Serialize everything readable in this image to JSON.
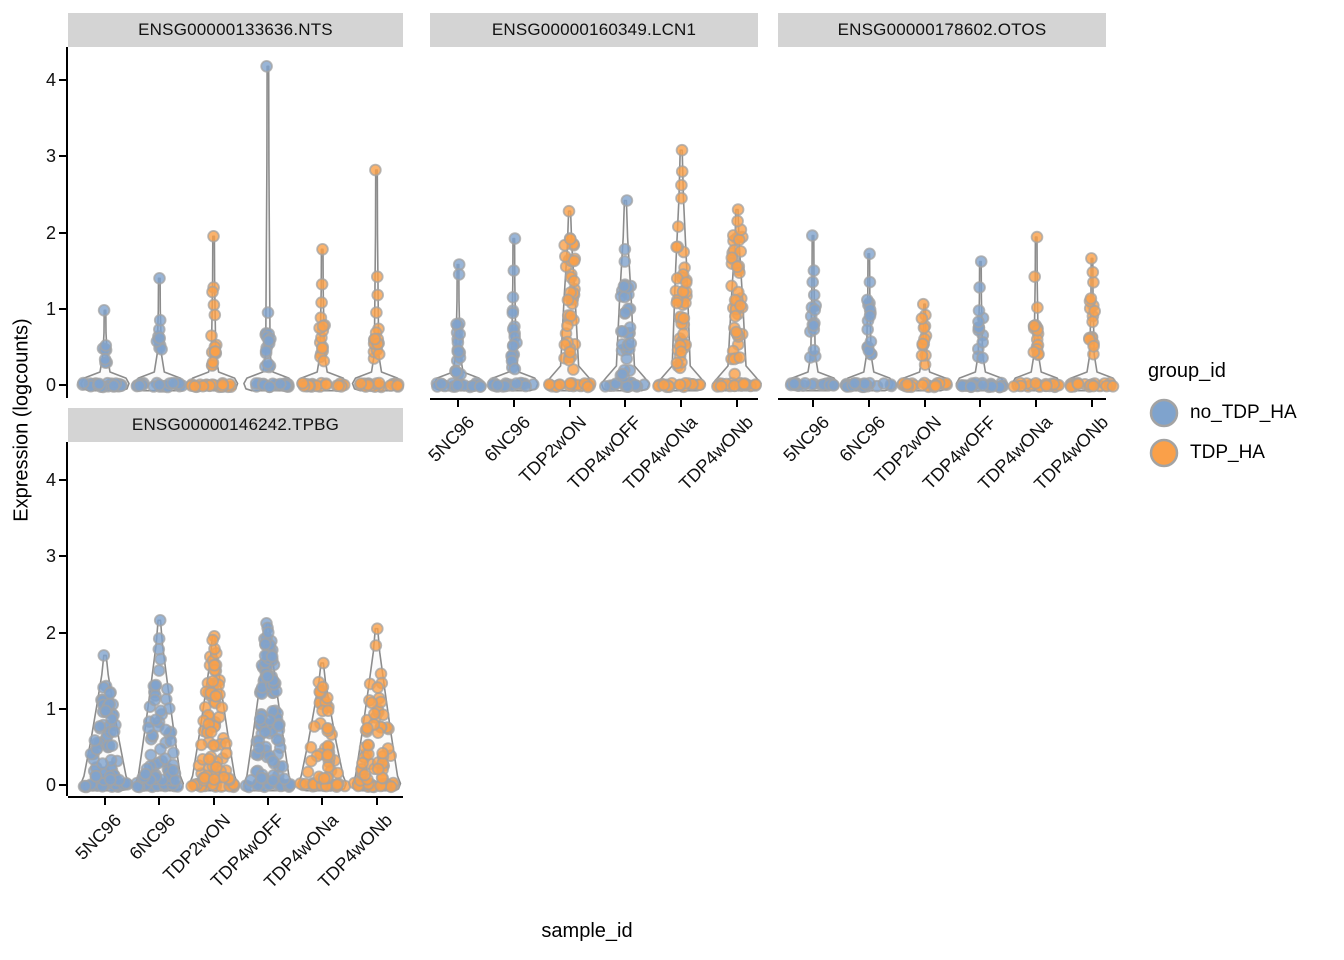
{
  "figure": {
    "y_axis_title": "Expression (logcounts)",
    "x_axis_title": "sample_id",
    "y_ticks": [
      0,
      1,
      2,
      3,
      4
    ],
    "x_categories": [
      "5NC96",
      "6NC96",
      "TDP2wON",
      "TDP4wOFF",
      "TDP4wONa",
      "TDP4wONb"
    ],
    "legend": {
      "title": "group_id",
      "items": [
        {
          "label": "no_TDP_HA",
          "color": "#7FA3CD"
        },
        {
          "label": "TDP_HA",
          "color": "#FAA049"
        }
      ]
    }
  },
  "colors": {
    "no_TDP_HA": "#7FA3CD",
    "TDP_HA": "#FAA049",
    "point_stroke": "#A3A3A3",
    "violin_stroke": "#8C8C8C",
    "violin_fill": "#FBFBFB",
    "strip_bg": "#D4D4D4",
    "axis": "#000000"
  },
  "chart_data": [
    {
      "type": "violin",
      "title": "ENSG00000133636.NTS",
      "xlabel": "sample_id",
      "ylabel": "Expression (logcounts)",
      "ylim": [
        0,
        4.2
      ],
      "samples": [
        {
          "sample": "5NC96",
          "group": "no_TDP_HA",
          "shape": "pin",
          "max": 0.98,
          "upper": [
            0.98,
            0.52
          ],
          "column": {
            "min": 0.28,
            "max": 0.5,
            "n": 6
          },
          "zeros": 22
        },
        {
          "sample": "6NC96",
          "group": "no_TDP_HA",
          "shape": "pin",
          "max": 1.4,
          "upper": [
            1.4,
            0.85
          ],
          "column": {
            "min": 0.38,
            "max": 0.8,
            "n": 8
          },
          "zeros": 22
        },
        {
          "sample": "TDP2wON",
          "group": "TDP_HA",
          "shape": "pin",
          "max": 1.95,
          "upper": [
            1.95,
            1.28,
            1.22,
            1.05,
            0.92
          ],
          "column": {
            "min": 0.25,
            "max": 0.65,
            "n": 11
          },
          "zeros": 22
        },
        {
          "sample": "TDP4wOFF",
          "group": "no_TDP_HA",
          "shape": "pin",
          "max": 4.18,
          "upper": [
            4.18,
            0.95
          ],
          "column": {
            "min": 0.22,
            "max": 0.68,
            "n": 14
          },
          "zeros": 22
        },
        {
          "sample": "TDP4wONa",
          "group": "TDP_HA",
          "shape": "pin",
          "max": 1.78,
          "upper": [
            1.78,
            1.32,
            1.08
          ],
          "column": {
            "min": 0.3,
            "max": 0.95,
            "n": 13
          },
          "zeros": 22
        },
        {
          "sample": "TDP4wONb",
          "group": "TDP_HA",
          "shape": "pin",
          "max": 2.82,
          "upper": [
            2.82,
            1.42,
            1.18,
            0.95
          ],
          "column": {
            "min": 0.25,
            "max": 0.75,
            "n": 13
          },
          "zeros": 22
        }
      ]
    },
    {
      "type": "violin",
      "title": "ENSG00000160349.LCN1",
      "xlabel": "sample_id",
      "ylabel": "Expression (logcounts)",
      "ylim": [
        0,
        4.2
      ],
      "samples": [
        {
          "sample": "5NC96",
          "group": "no_TDP_HA",
          "shape": "pin",
          "max": 1.58,
          "upper": [
            1.58,
            1.45
          ],
          "column": {
            "min": 0.12,
            "max": 0.9,
            "n": 18
          },
          "zeros": 20
        },
        {
          "sample": "6NC96",
          "group": "no_TDP_HA",
          "shape": "pin",
          "max": 1.92,
          "upper": [
            1.92,
            1.5,
            1.15
          ],
          "column": {
            "min": 0.12,
            "max": 0.98,
            "n": 16
          },
          "zeros": 20
        },
        {
          "sample": "TDP2wON",
          "group": "TDP_HA",
          "shape": "funnel",
          "max": 2.28,
          "upper": [
            2.28
          ],
          "column": {
            "min": 0.1,
            "max": 2.0,
            "n": 38
          },
          "zeros": 20
        },
        {
          "sample": "TDP4wOFF",
          "group": "no_TDP_HA",
          "shape": "funnel",
          "max": 2.42,
          "upper": [
            2.42,
            1.78,
            1.62
          ],
          "column": {
            "min": 0.1,
            "max": 1.35,
            "n": 30
          },
          "zeros": 20
        },
        {
          "sample": "TDP4wONa",
          "group": "TDP_HA",
          "shape": "funnel",
          "max": 3.08,
          "upper": [
            3.08,
            2.8,
            2.62,
            2.45
          ],
          "column": {
            "min": 0.1,
            "max": 2.1,
            "n": 40
          },
          "zeros": 20
        },
        {
          "sample": "TDP4wONb",
          "group": "TDP_HA",
          "shape": "funnel",
          "max": 2.3,
          "upper": [
            2.3,
            2.15
          ],
          "column": {
            "min": 0.1,
            "max": 2.05,
            "n": 40
          },
          "zeros": 20
        }
      ]
    },
    {
      "type": "violin",
      "title": "ENSG00000178602.OTOS",
      "xlabel": "sample_id",
      "ylabel": "Expression (logcounts)",
      "ylim": [
        0,
        4.2
      ],
      "samples": [
        {
          "sample": "5NC96",
          "group": "no_TDP_HA",
          "shape": "pin",
          "max": 1.96,
          "upper": [
            1.96,
            1.5,
            1.35,
            1.18
          ],
          "column": {
            "min": 0.3,
            "max": 1.05,
            "n": 12
          },
          "zeros": 22
        },
        {
          "sample": "6NC96",
          "group": "no_TDP_HA",
          "shape": "pin",
          "max": 1.72,
          "upper": [
            1.72,
            1.35
          ],
          "column": {
            "min": 0.28,
            "max": 1.12,
            "n": 14
          },
          "zeros": 22
        },
        {
          "sample": "TDP2wON",
          "group": "TDP_HA",
          "shape": "pin",
          "max": 1.06,
          "upper": [
            1.06
          ],
          "column": {
            "min": 0.2,
            "max": 0.98,
            "n": 12
          },
          "zeros": 22
        },
        {
          "sample": "TDP4wOFF",
          "group": "no_TDP_HA",
          "shape": "pin",
          "max": 1.62,
          "upper": [
            1.62,
            1.28
          ],
          "column": {
            "min": 0.3,
            "max": 1.0,
            "n": 11
          },
          "zeros": 22
        },
        {
          "sample": "TDP4wONa",
          "group": "TDP_HA",
          "shape": "pin",
          "max": 1.94,
          "upper": [
            1.94,
            1.42
          ],
          "column": {
            "min": 0.3,
            "max": 1.35,
            "n": 16
          },
          "zeros": 22
        },
        {
          "sample": "TDP4wONb",
          "group": "TDP_HA",
          "shape": "pin",
          "max": 1.66,
          "upper": [
            1.66,
            1.48
          ],
          "column": {
            "min": 0.35,
            "max": 1.4,
            "n": 15
          },
          "zeros": 22
        }
      ]
    },
    {
      "type": "violin",
      "title": "ENSG00000146242.TPBG",
      "xlabel": "sample_id",
      "ylabel": "Expression (logcounts)",
      "ylim": [
        0,
        4.2
      ],
      "samples": [
        {
          "sample": "5NC96",
          "group": "no_TDP_HA",
          "shape": "cone",
          "max": 1.7,
          "upper": [
            1.7
          ],
          "column": {
            "min": 0.06,
            "max": 1.3,
            "n": 60
          },
          "zeros": 20
        },
        {
          "sample": "6NC96",
          "group": "no_TDP_HA",
          "shape": "cone",
          "max": 2.16,
          "upper": [
            2.16,
            1.92,
            1.78,
            1.65,
            1.5
          ],
          "column": {
            "min": 0.06,
            "max": 1.35,
            "n": 55
          },
          "zeros": 20
        },
        {
          "sample": "TDP2wON",
          "group": "TDP_HA",
          "shape": "cone",
          "max": 1.95,
          "upper": [
            1.95,
            1.9
          ],
          "column": {
            "min": 0.06,
            "max": 1.82,
            "n": 70
          },
          "zeros": 20
        },
        {
          "sample": "TDP4wOFF",
          "group": "no_TDP_HA",
          "shape": "cone",
          "max": 2.12,
          "upper": [
            2.12,
            2.06,
            2.0
          ],
          "column": {
            "min": 0.06,
            "max": 1.95,
            "n": 90
          },
          "zeros": 20
        },
        {
          "sample": "TDP4wONa",
          "group": "TDP_HA",
          "shape": "cone",
          "max": 1.6,
          "upper": [
            1.6
          ],
          "column": {
            "min": 0.06,
            "max": 1.4,
            "n": 45
          },
          "zeros": 20
        },
        {
          "sample": "TDP4wONb",
          "group": "TDP_HA",
          "shape": "cone",
          "max": 2.05,
          "upper": [
            2.05,
            1.83
          ],
          "column": {
            "min": 0.06,
            "max": 1.5,
            "n": 50
          },
          "zeros": 20
        }
      ]
    }
  ]
}
